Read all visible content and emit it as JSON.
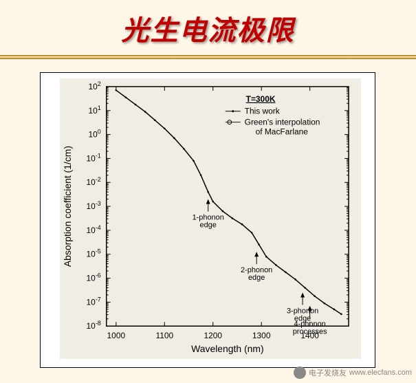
{
  "slide": {
    "title": "光生电流极限",
    "title_color": "#c00000",
    "title_fontsize": 40,
    "background_color": "#fef6e6",
    "divider_colors": [
      "#d4a843",
      "#f5e3b3",
      "#c89830"
    ]
  },
  "chart": {
    "type": "line",
    "background_color": "#f0ede5",
    "frame_color": "#000000",
    "line_color": "#000000",
    "line_width": 1.5,
    "xlabel": "Wavelength (nm)",
    "ylabel": "Absorption coefficient (1/cm)",
    "label_fontsize": 14,
    "tick_fontsize": 12,
    "annot_fontsize": 11,
    "xlim": [
      980,
      1480
    ],
    "ylim_exp": [
      -8,
      2
    ],
    "yscale": "log",
    "xticks": [
      1000,
      1100,
      1200,
      1300,
      1400
    ],
    "ytick_exponents": [
      -8,
      -7,
      -6,
      -5,
      -4,
      -3,
      -2,
      -1,
      0,
      1,
      2
    ],
    "legend": {
      "title": "T=300K",
      "items": [
        {
          "marker": "line-dot",
          "label": "This work"
        },
        {
          "marker": "open-circle",
          "label": "Green's interpolation of MacFarlane"
        }
      ]
    },
    "data_points": [
      {
        "x": 1000,
        "y_exp": 1.85
      },
      {
        "x": 1020,
        "y_exp": 1.55
      },
      {
        "x": 1040,
        "y_exp": 1.25
      },
      {
        "x": 1060,
        "y_exp": 0.95
      },
      {
        "x": 1080,
        "y_exp": 0.6
      },
      {
        "x": 1100,
        "y_exp": 0.25
      },
      {
        "x": 1120,
        "y_exp": -0.15
      },
      {
        "x": 1140,
        "y_exp": -0.6
      },
      {
        "x": 1160,
        "y_exp": -1.1
      },
      {
        "x": 1175,
        "y_exp": -1.7
      },
      {
        "x": 1190,
        "y_exp": -2.4
      },
      {
        "x": 1200,
        "y_exp": -2.8
      },
      {
        "x": 1220,
        "y_exp": -3.2
      },
      {
        "x": 1240,
        "y_exp": -3.5
      },
      {
        "x": 1260,
        "y_exp": -3.75
      },
      {
        "x": 1280,
        "y_exp": -4.1
      },
      {
        "x": 1295,
        "y_exp": -4.6
      },
      {
        "x": 1310,
        "y_exp": -5.1
      },
      {
        "x": 1330,
        "y_exp": -5.45
      },
      {
        "x": 1350,
        "y_exp": -5.75
      },
      {
        "x": 1370,
        "y_exp": -6.05
      },
      {
        "x": 1390,
        "y_exp": -6.4
      },
      {
        "x": 1410,
        "y_exp": -6.75
      },
      {
        "x": 1430,
        "y_exp": -7.05
      },
      {
        "x": 1450,
        "y_exp": -7.3
      },
      {
        "x": 1465,
        "y_exp": -7.5
      }
    ],
    "annotations": [
      {
        "x": 1190,
        "y_exp": -2.3,
        "lines": [
          "1-phonon",
          "edge"
        ],
        "arrow_to_y_exp": -2.7
      },
      {
        "x": 1290,
        "y_exp": -4.4,
        "lines": [
          "2-phonon",
          "edge"
        ],
        "arrow_to_y_exp": -4.9
      },
      {
        "x": 1385,
        "y_exp": -6.15,
        "lines": [
          "3-phonon",
          "edge"
        ],
        "arrow_to_y_exp": -6.6
      },
      {
        "x": 1400,
        "y_exp": -6.8,
        "lines": [
          "4-phonon",
          "processes"
        ],
        "arrow_to_y_exp": -7.15
      }
    ]
  },
  "watermark": {
    "text": "www.elecfans.com",
    "brand": "电子发烧友"
  }
}
